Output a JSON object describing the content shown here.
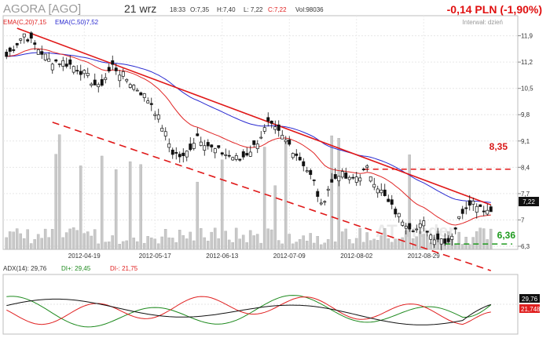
{
  "header": {
    "ticker": "AGORA [AGO]",
    "date": "21 wrz",
    "time": "18:33",
    "open_label": "O:7,35",
    "high_label": "H:7,40",
    "low_label": "L: 7,22",
    "close_label": "C:7,22",
    "volume_label": "Vol:98036",
    "change": "-0,14 PLN (-1,90%)",
    "interval": "Interwał: dzień"
  },
  "legend": {
    "ema20": "EMA(C,20)7,15",
    "ema50": "EMA(C,50)7,52"
  },
  "adx_legend": {
    "adx": "ADX(14): 29,76",
    "di_plus": "DI+: 29,45",
    "di_minus": "DI-: 21,75"
  },
  "levels": {
    "resistance_label": "8,35",
    "support_label": "6,36"
  },
  "price_tag": "7,22",
  "adx_tags": {
    "adx": "29,76",
    "di_minus": "21,748"
  },
  "watermark": "AT Trader",
  "colors": {
    "ema20": "#e02424",
    "ema50": "#2a2ad0",
    "trend": "#e01818",
    "di_plus": "#1e8a1e",
    "di_minus": "#e02020",
    "adx": "#111111",
    "volume": "#c8c8c8"
  },
  "chart_data": [
    {
      "type": "candlestick",
      "title": "AGORA [AGO]",
      "ylim": [
        6.3,
        12.1
      ],
      "y_ticks": [
        "11,9",
        "11,2",
        "10,5",
        "9,8",
        "9,1",
        "8,4",
        "7,7",
        "7",
        "6,3"
      ],
      "y_tick_values": [
        11.9,
        11.2,
        10.5,
        9.8,
        9.1,
        8.4,
        7.7,
        7.0,
        6.3
      ],
      "x_ticks": [
        "2012-04-19",
        "2012-05-17",
        "2012-06-13",
        "2012-07-09",
        "2012-08-02",
        "2012-08-29"
      ],
      "x_tick_index": [
        22,
        42,
        61,
        80,
        99,
        118
      ],
      "n_bars": 138,
      "close_anchors": [
        [
          0,
          11.35
        ],
        [
          5,
          11.95
        ],
        [
          9,
          11.55
        ],
        [
          12,
          11.25
        ],
        [
          16,
          11.2
        ],
        [
          20,
          11.05
        ],
        [
          23,
          10.8
        ],
        [
          26,
          10.5
        ],
        [
          30,
          11.1
        ],
        [
          34,
          10.75
        ],
        [
          38,
          10.4
        ],
        [
          41,
          10.1
        ],
        [
          44,
          9.5
        ],
        [
          47,
          8.8
        ],
        [
          50,
          8.65
        ],
        [
          54,
          9.25
        ],
        [
          58,
          8.9
        ],
        [
          62,
          8.75
        ],
        [
          66,
          8.6
        ],
        [
          70,
          8.95
        ],
        [
          74,
          9.55
        ],
        [
          77,
          9.3
        ],
        [
          80,
          9.0
        ],
        [
          84,
          8.5
        ],
        [
          87,
          8.0
        ],
        [
          89,
          7.35
        ],
        [
          91,
          7.85
        ],
        [
          94,
          8.25
        ],
        [
          97,
          8.05
        ],
        [
          100,
          8.2
        ],
        [
          102,
          8.35
        ],
        [
          105,
          7.9
        ],
        [
          108,
          7.45
        ],
        [
          111,
          7.1
        ],
        [
          114,
          6.85
        ],
        [
          116,
          6.75
        ],
        [
          118,
          6.9
        ],
        [
          120,
          6.6
        ],
        [
          123,
          6.5
        ],
        [
          125,
          6.45
        ],
        [
          127,
          6.8
        ],
        [
          129,
          7.25
        ],
        [
          131,
          7.5
        ],
        [
          133,
          7.45
        ],
        [
          135,
          7.3
        ],
        [
          137,
          7.22
        ]
      ],
      "last_ohlc": {
        "open": 7.35,
        "high": 7.4,
        "low": 7.22,
        "close": 7.22
      },
      "ema20_last": 7.15,
      "ema50_last": 7.52,
      "resistance_level": 8.35,
      "support_level": 6.36,
      "upper_trendline": [
        [
          3,
          12.1
        ],
        [
          137,
          7.4
        ]
      ],
      "lower_trendline": [
        [
          13,
          9.6
        ],
        [
          137,
          5.65
        ]
      ]
    },
    {
      "type": "line",
      "series": [
        {
          "name": "ADX(14)",
          "last": 29.76
        },
        {
          "name": "DI+",
          "last": 29.45
        },
        {
          "name": "DI-",
          "last": 21.75
        }
      ],
      "ylim": [
        0,
        60
      ]
    }
  ]
}
